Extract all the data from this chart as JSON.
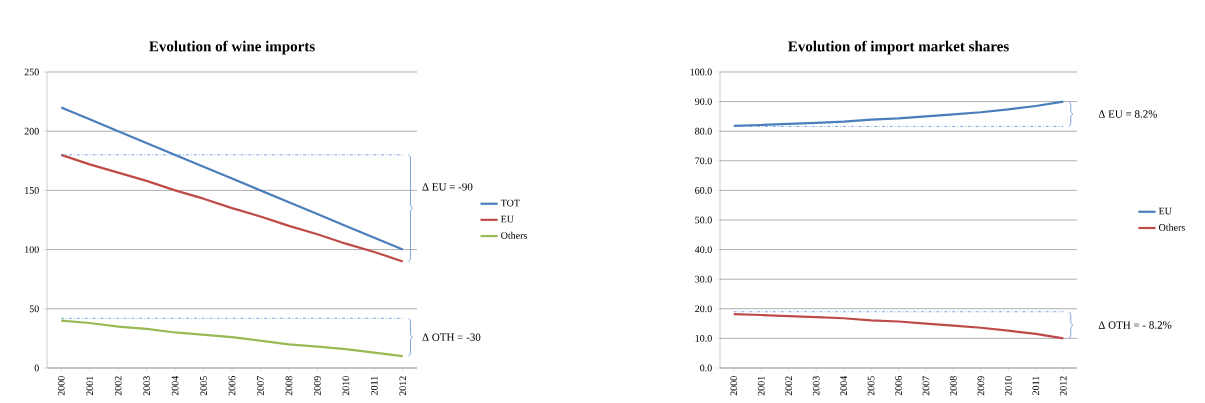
{
  "chart_data": [
    {
      "type": "line",
      "title": "Evolution of wine imports",
      "categories": [
        "2000",
        "2001",
        "2002",
        "2003",
        "2004",
        "2005",
        "2006",
        "2007",
        "2008",
        "2009",
        "2010",
        "2011",
        "2012"
      ],
      "series": [
        {
          "name": "TOT",
          "color": "#4a7ebb",
          "values": [
            220,
            210,
            200,
            190,
            180,
            170,
            160,
            150,
            140,
            130,
            120,
            110,
            100
          ]
        },
        {
          "name": "EU",
          "color": "#be4b48",
          "values": [
            180,
            172,
            165,
            158,
            150,
            143,
            135,
            128,
            120,
            113,
            105,
            98,
            90
          ]
        },
        {
          "name": "Others",
          "color": "#98b954",
          "values": [
            40,
            38,
            35,
            33,
            30,
            28,
            26,
            23,
            20,
            18,
            16,
            13,
            10
          ]
        }
      ],
      "ylim": [
        0,
        250
      ],
      "yticks": [
        0,
        50,
        100,
        150,
        200,
        250
      ],
      "grid": "y",
      "legend": "right",
      "marker": "none",
      "line_style": "solid",
      "ref_lines": [
        {
          "axis": "y",
          "value": 180,
          "color": "#5b8fd6",
          "line_style": "dashdot"
        },
        {
          "axis": "y",
          "value": 42,
          "color": "#5b8fd6",
          "line_style": "dashdot"
        }
      ],
      "annotations": [
        "Δ EU =  -90",
        "Δ OTH =  -30"
      ]
    },
    {
      "type": "line",
      "title": "Evolution of import market shares",
      "categories": [
        "2000",
        "2001",
        "2002",
        "2003",
        "2004",
        "2005",
        "2006",
        "2007",
        "2008",
        "2009",
        "2010",
        "2011",
        "2012"
      ],
      "series": [
        {
          "name": "EU",
          "color": "#4a7ebb",
          "values": [
            81.8,
            82.1,
            82.5,
            82.8,
            83.2,
            83.9,
            84.3,
            85.0,
            85.7,
            86.4,
            87.4,
            88.5,
            90.0
          ]
        },
        {
          "name": "Others",
          "color": "#be4b48",
          "values": [
            18.2,
            17.9,
            17.5,
            17.2,
            16.8,
            16.1,
            15.7,
            15.0,
            14.3,
            13.6,
            12.6,
            11.5,
            10.0
          ]
        }
      ],
      "ylim": [
        0,
        100
      ],
      "yticks": [
        {
          "value": 0,
          "label": "0.0"
        },
        {
          "value": 10,
          "label": "10.0"
        },
        {
          "value": 20,
          "label": "20.0"
        },
        {
          "value": 30,
          "label": "30.0"
        },
        {
          "value": 40,
          "label": "40.0"
        },
        {
          "value": 50,
          "label": "50.0"
        },
        {
          "value": 60,
          "label": "60.0"
        },
        {
          "value": 70,
          "label": "70.0"
        },
        {
          "value": 80,
          "label": "80.0"
        },
        {
          "value": 90,
          "label": "90.0"
        },
        {
          "value": 100,
          "label": "100.0"
        }
      ],
      "grid": "y",
      "legend": "right",
      "marker": "none",
      "line_style": "solid",
      "ref_lines": [
        {
          "axis": "y",
          "value": 81.6,
          "color": "#5b8fd6",
          "line_style": "dashdot"
        },
        {
          "axis": "y",
          "value": 19,
          "color": "#5b8fd6",
          "line_style": "dashdot"
        }
      ],
      "annotations": [
        "Δ EU =  8.2%",
        "Δ OTH =  - 8.2%"
      ]
    }
  ]
}
